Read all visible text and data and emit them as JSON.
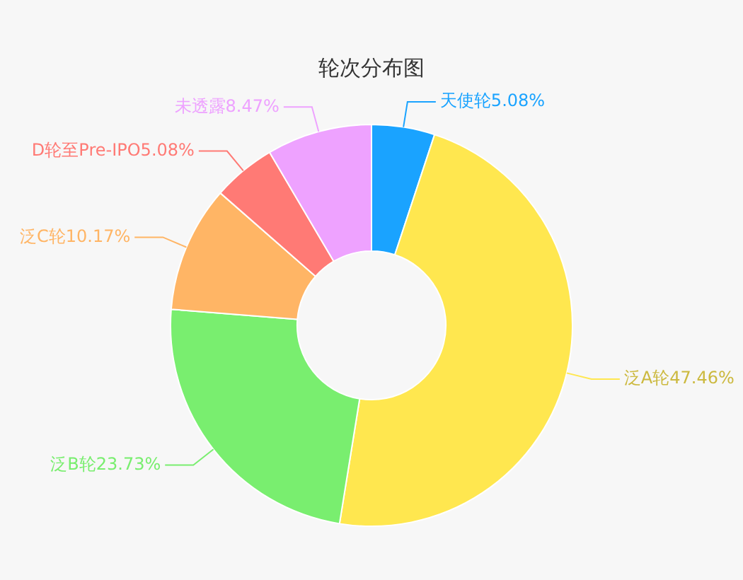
{
  "chart_data": {
    "type": "donut",
    "title": "轮次分布图",
    "categories": [
      "天使轮",
      "泛A轮",
      "泛B轮",
      "泛C轮",
      "D轮至Pre-IPO",
      "未透露"
    ],
    "values": [
      5.08,
      47.46,
      23.73,
      10.17,
      5.08,
      8.47
    ],
    "colors": [
      "#1aa3ff",
      "#ffe74f",
      "#79ee6f",
      "#ffb565",
      "#ff7a75",
      "#eea2ff"
    ],
    "value_labels": [
      "5.08%",
      "47.46%",
      "23.73%",
      "10.17%",
      "5.08%",
      "8.47%"
    ],
    "legend": false
  }
}
